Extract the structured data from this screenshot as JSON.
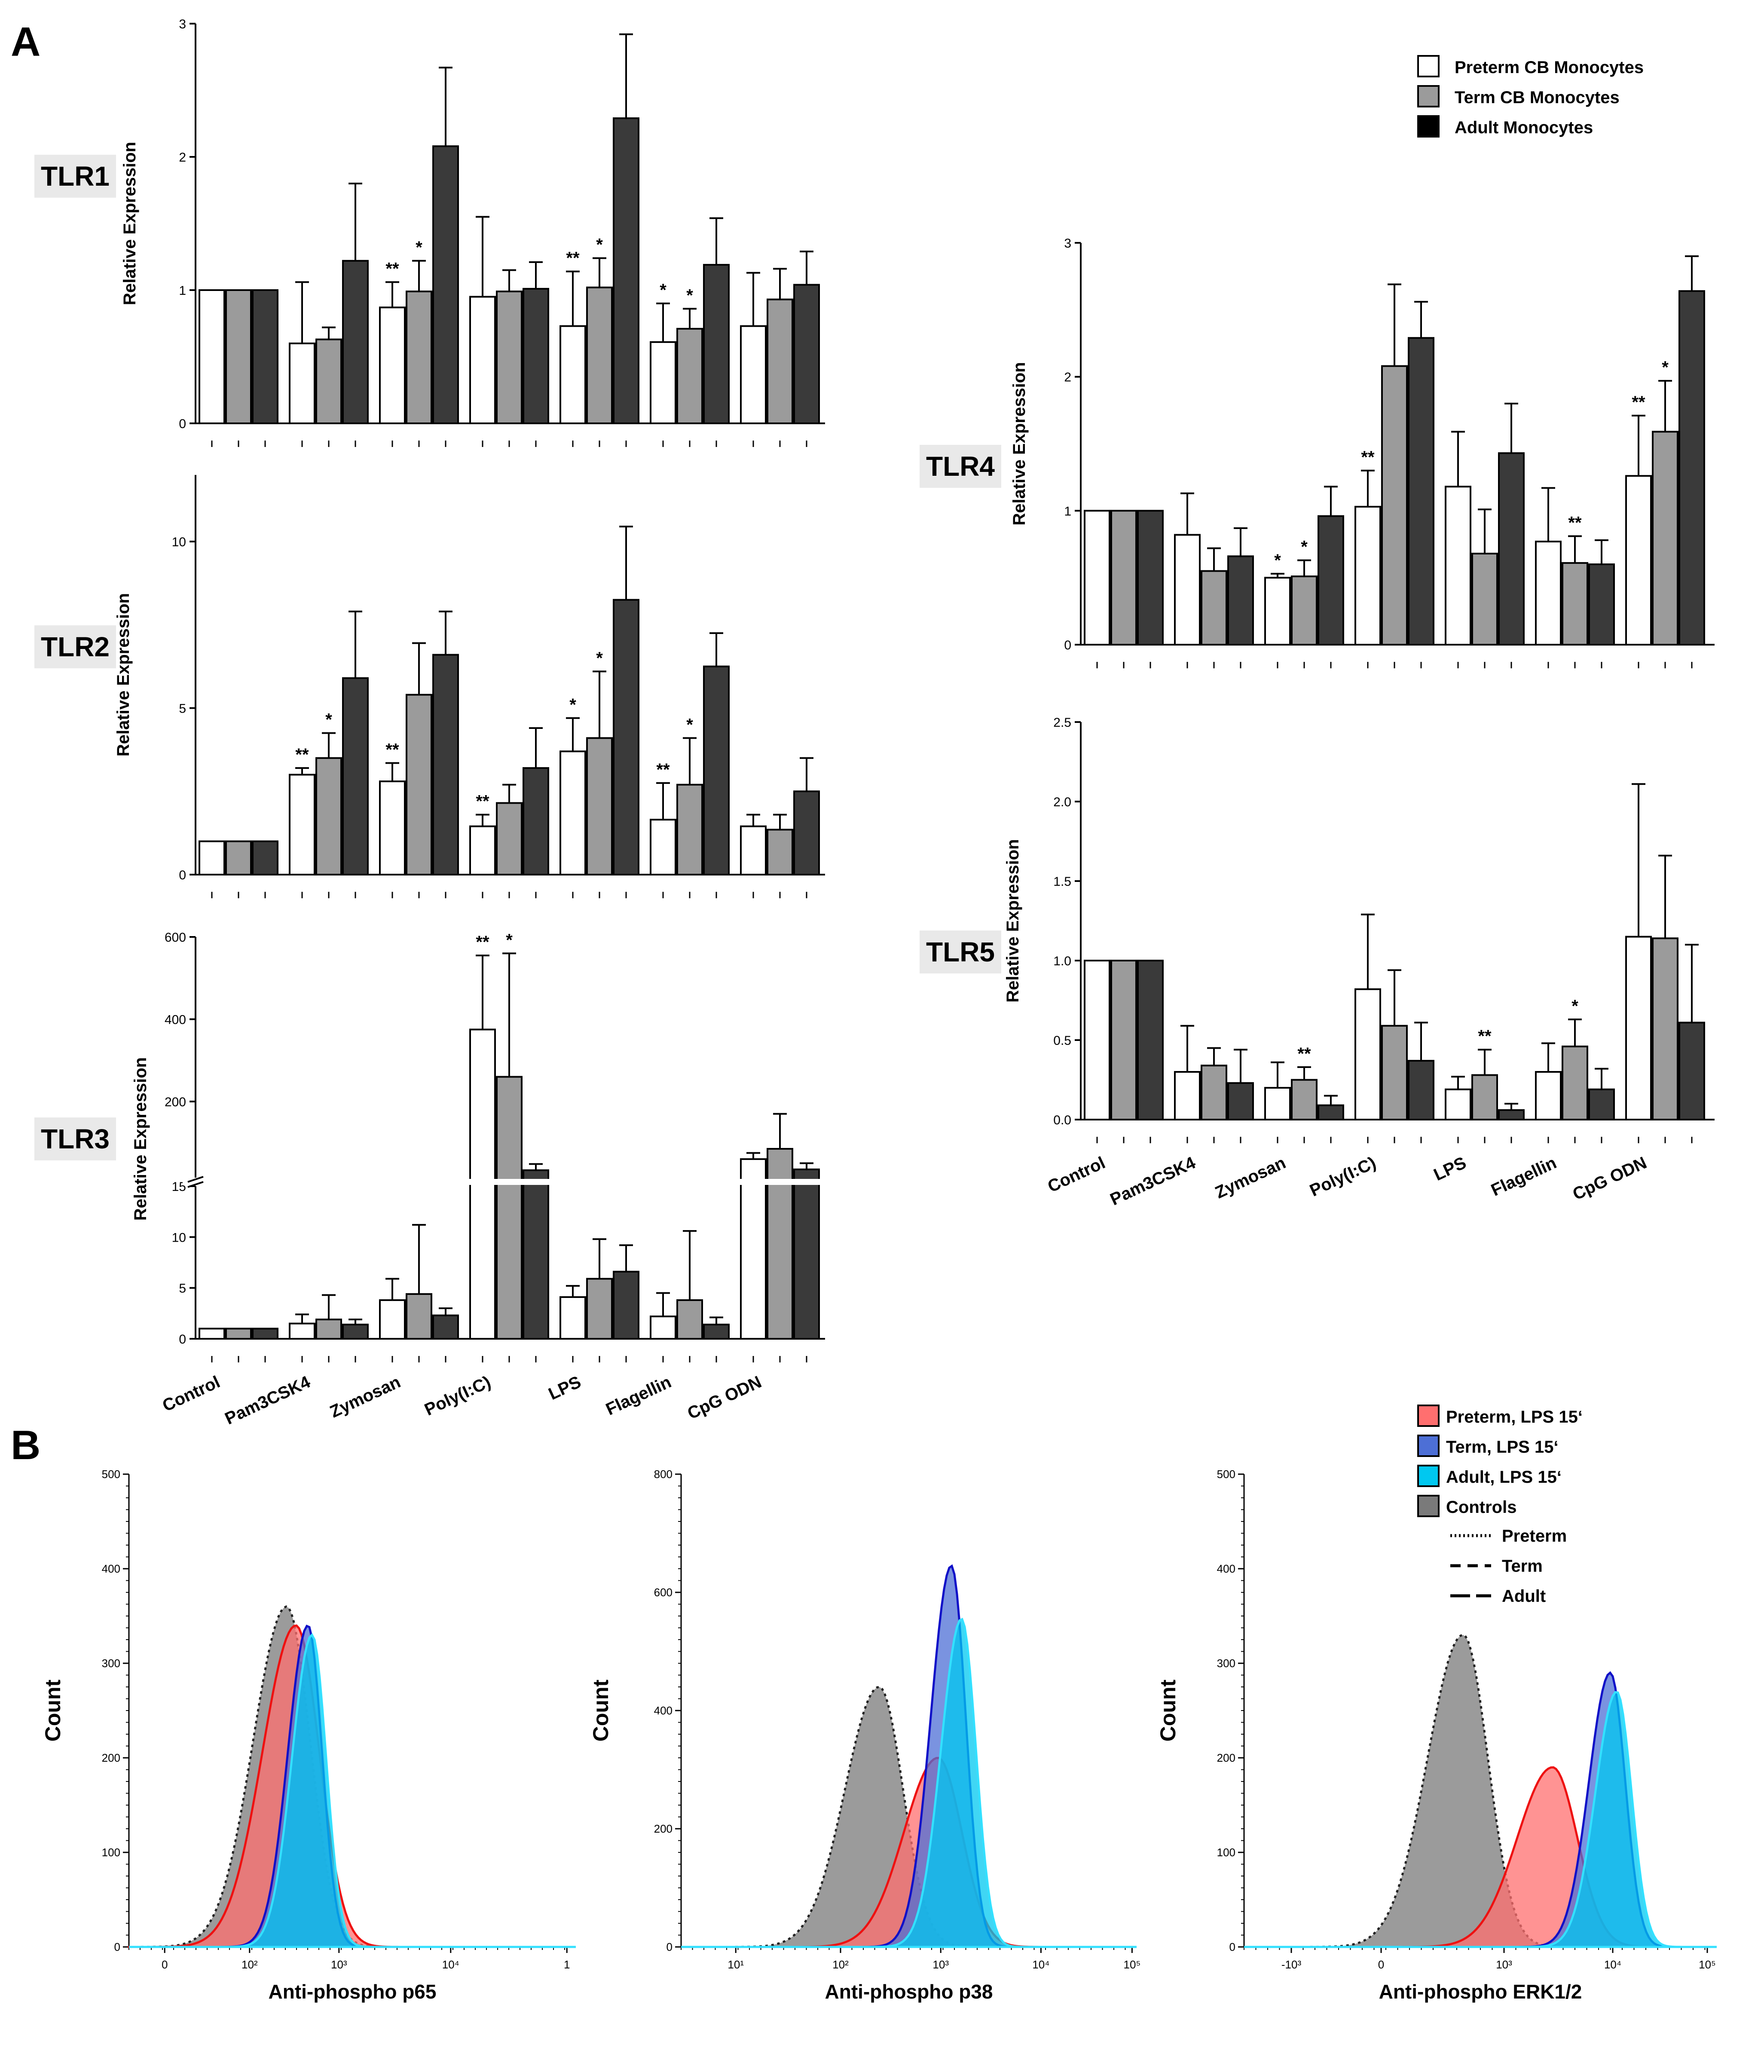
{
  "panel_labels": [
    "A",
    "B"
  ],
  "legend_A": [
    {
      "label": "Preterm CB Monocytes",
      "color": "#ffffff"
    },
    {
      "label": "Term CB Monocytes",
      "color": "#9b9b9b"
    },
    {
      "label": "Adult Monocytes",
      "color": "#000000"
    }
  ],
  "legend_B": {
    "fills": [
      {
        "label": "Preterm, LPS 15‘",
        "color": "#ff6f6f"
      },
      {
        "label": "Term, LPS 15‘",
        "color": "#4d6fd6"
      },
      {
        "label": "Adult, LPS 15‘",
        "color": "#00c8f0"
      },
      {
        "label": "Controls",
        "color": "#7a7a7a"
      }
    ],
    "lines": [
      {
        "label": "Preterm",
        "dash": "dotted"
      },
      {
        "label": "Term",
        "dash": "dashed"
      },
      {
        "label": "Adult",
        "dash": "long-dashed"
      }
    ]
  },
  "chart_data": [
    {
      "type": "bar",
      "name": "TLR1",
      "ylabel": "Relative Expression",
      "categories": [
        "Control",
        "Pam3CSK4",
        "Zymosan",
        "Poly(I:C)",
        "LPS",
        "Flagellin",
        "CpG ODN"
      ],
      "ylim": [
        0,
        3
      ],
      "yticks": [
        0,
        1,
        2,
        3
      ],
      "series": [
        {
          "name": "Preterm CB Monocytes",
          "values": [
            1,
            0.6,
            0.87,
            0.95,
            0.73,
            0.61,
            0.73
          ],
          "err": [
            0,
            0.46,
            0.19,
            0.6,
            0.41,
            0.29,
            0.4
          ]
        },
        {
          "name": "Term CB Monocytes",
          "values": [
            1,
            0.63,
            0.99,
            0.99,
            1.02,
            0.71,
            0.93
          ],
          "err": [
            0,
            0.09,
            0.23,
            0.16,
            0.22,
            0.15,
            0.23
          ]
        },
        {
          "name": "Adult Monocytes",
          "values": [
            1,
            1.22,
            2.08,
            1.01,
            2.29,
            1.19,
            1.04
          ],
          "err": [
            0,
            0.58,
            0.59,
            0.2,
            0.63,
            0.35,
            0.25
          ]
        }
      ],
      "stars": [
        null,
        null,
        [
          "**",
          "*",
          ""
        ],
        null,
        [
          "**",
          "*",
          ""
        ],
        [
          "*",
          "*",
          ""
        ],
        null
      ]
    },
    {
      "type": "bar",
      "name": "TLR2",
      "ylabel": "Relative Expression",
      "categories": [
        "Control",
        "Pam3CSK4",
        "Zymosan",
        "Poly(I:C)",
        "LPS",
        "Flagellin",
        "CpG ODN"
      ],
      "ylim": [
        0,
        12
      ],
      "yticks": [
        0,
        5,
        10
      ],
      "series": [
        {
          "name": "Preterm CB Monocytes",
          "values": [
            1,
            3.0,
            2.8,
            1.45,
            3.7,
            1.65,
            1.45
          ],
          "err": [
            0,
            0.2,
            0.55,
            0.35,
            1.0,
            1.1,
            0.35
          ]
        },
        {
          "name": "Term CB Monocytes",
          "values": [
            1,
            3.5,
            5.4,
            2.15,
            4.1,
            2.7,
            1.35
          ],
          "err": [
            0,
            0.75,
            1.55,
            0.55,
            2.0,
            1.4,
            0.45
          ]
        },
        {
          "name": "Adult Monocytes",
          "values": [
            1,
            5.9,
            6.6,
            3.2,
            8.25,
            6.25,
            2.5
          ],
          "err": [
            0,
            2.0,
            1.3,
            1.2,
            2.2,
            1.0,
            1.0
          ]
        }
      ],
      "stars": [
        null,
        [
          "**",
          "*",
          ""
        ],
        [
          "**",
          "",
          ""
        ],
        [
          "**",
          "",
          ""
        ],
        [
          "*",
          "*",
          ""
        ],
        [
          "**",
          "*",
          ""
        ],
        null
      ]
    },
    {
      "type": "bar",
      "name": "TLR3",
      "ylabel": "Relative Expression",
      "axis_break": true,
      "categories": [
        "Control",
        "Pam3CSK4",
        "Zymosan",
        "Poly(I:C)",
        "LPS",
        "Flagellin",
        "CpG ODN"
      ],
      "ylim_lower": [
        0,
        15
      ],
      "yticks_lower": [
        0,
        5,
        10,
        15
      ],
      "ylim_upper": [
        15,
        600
      ],
      "yticks_upper": [
        200,
        400,
        600
      ],
      "series": [
        {
          "name": "Preterm CB Monocytes",
          "values": [
            1,
            1.5,
            3.8,
            375,
            4.1,
            2.2,
            60
          ],
          "err": [
            0,
            0.9,
            2.1,
            180,
            1.1,
            2.3,
            15
          ]
        },
        {
          "name": "Term CB Monocytes",
          "values": [
            1,
            1.9,
            4.4,
            260,
            5.9,
            3.8,
            85
          ],
          "err": [
            0,
            2.4,
            6.8,
            300,
            3.9,
            6.8,
            85
          ]
        },
        {
          "name": "Adult Monocytes",
          "values": [
            1,
            1.4,
            2.3,
            33,
            6.6,
            1.4,
            35
          ],
          "err": [
            0,
            0.5,
            0.7,
            15,
            2.6,
            0.7,
            15
          ]
        }
      ],
      "stars": [
        null,
        null,
        null,
        [
          "**",
          "*",
          ""
        ],
        null,
        null,
        null
      ]
    },
    {
      "type": "bar",
      "name": "TLR4",
      "ylabel": "Relative Expression",
      "categories": [
        "Control",
        "Pam3CSK4",
        "Zymosan",
        "Poly(I:C)",
        "LPS",
        "Flagellin",
        "CpG ODN"
      ],
      "ylim": [
        0,
        3
      ],
      "yticks": [
        0,
        1,
        2,
        3
      ],
      "series": [
        {
          "name": "Preterm CB Monocytes",
          "values": [
            1,
            0.82,
            0.5,
            1.03,
            1.18,
            0.77,
            1.26
          ],
          "err": [
            0,
            0.31,
            0.03,
            0.27,
            0.41,
            0.4,
            0.45
          ]
        },
        {
          "name": "Term CB Monocytes",
          "values": [
            1,
            0.55,
            0.51,
            2.08,
            0.68,
            0.61,
            1.59
          ],
          "err": [
            0,
            0.17,
            0.12,
            0.61,
            0.33,
            0.2,
            0.38
          ]
        },
        {
          "name": "Adult Monocytes",
          "values": [
            1,
            0.66,
            0.96,
            2.29,
            1.43,
            0.6,
            2.64
          ],
          "err": [
            0,
            0.21,
            0.22,
            0.27,
            0.37,
            0.18,
            0.26
          ]
        }
      ],
      "stars": [
        null,
        null,
        [
          "*",
          "*",
          ""
        ],
        [
          "**",
          "",
          ""
        ],
        null,
        [
          "",
          "**",
          ""
        ],
        [
          "**",
          "*",
          ""
        ]
      ]
    },
    {
      "type": "bar",
      "name": "TLR5",
      "ylabel": "Relative Expression",
      "categories": [
        "Control",
        "Pam3CSK4",
        "Zymosan",
        "Poly(I:C)",
        "LPS",
        "Flagellin",
        "CpG ODN"
      ],
      "ylim": [
        0,
        2.5
      ],
      "yticks": [
        "0.0",
        "0.5",
        "1.0",
        "1.5",
        "2.0",
        "2.5"
      ],
      "series": [
        {
          "name": "Preterm CB Monocytes",
          "values": [
            1,
            0.3,
            0.2,
            0.82,
            0.19,
            0.3,
            1.15
          ],
          "err": [
            0,
            0.29,
            0.16,
            0.47,
            0.08,
            0.18,
            0.96
          ]
        },
        {
          "name": "Term CB Monocytes",
          "values": [
            1,
            0.34,
            0.25,
            0.59,
            0.28,
            0.46,
            1.14
          ],
          "err": [
            0,
            0.11,
            0.08,
            0.35,
            0.16,
            0.17,
            0.52
          ]
        },
        {
          "name": "Adult Monocytes",
          "values": [
            1,
            0.23,
            0.09,
            0.37,
            0.06,
            0.19,
            0.61
          ],
          "err": [
            0,
            0.21,
            0.06,
            0.24,
            0.04,
            0.13,
            0.49
          ]
        }
      ],
      "stars": [
        null,
        null,
        [
          "",
          "**",
          ""
        ],
        null,
        [
          "",
          "**",
          ""
        ],
        [
          "",
          "*",
          ""
        ],
        null
      ]
    },
    {
      "type": "area",
      "name": "Anti-phospho p65",
      "xlabel": "Anti-phospho p65",
      "ylabel": "Count",
      "xscale": "biexponential",
      "xticks": [
        "0",
        "10²",
        "10³",
        "10⁴",
        "1"
      ],
      "ylim": [
        0,
        500
      ],
      "yticks": [
        0,
        100,
        200,
        300,
        400,
        500
      ],
      "series": [
        {
          "name": "Controls",
          "peak_x": 260,
          "peak_y": 360
        },
        {
          "name": "Preterm, LPS 15‘",
          "peak_x": 330,
          "peak_y": 340
        },
        {
          "name": "Term, LPS 15‘",
          "peak_x": 450,
          "peak_y": 340
        },
        {
          "name": "Adult, LPS 15‘",
          "peak_x": 500,
          "peak_y": 330
        }
      ]
    },
    {
      "type": "area",
      "name": "Anti-phospho p38",
      "xlabel": "Anti-phospho p38",
      "ylabel": "Count",
      "xscale": "log",
      "xticks": [
        "10¹",
        "10²",
        "10³",
        "10⁴",
        "10⁵"
      ],
      "ylim": [
        0,
        800
      ],
      "yticks": [
        0,
        200,
        400,
        600,
        800
      ],
      "series": [
        {
          "name": "Controls",
          "peak_x": 280,
          "peak_y": 440
        },
        {
          "name": "Preterm, LPS 15‘",
          "peak_x": 1100,
          "peak_y": 320
        },
        {
          "name": "Term, LPS 15‘",
          "peak_x": 1500,
          "peak_y": 645
        },
        {
          "name": "Adult, LPS 15‘",
          "peak_x": 1900,
          "peak_y": 555
        }
      ]
    },
    {
      "type": "area",
      "name": "Anti-phospho ERK1/2",
      "xlabel": "Anti-phospho ERK1/2",
      "ylabel": "Count",
      "xscale": "biexponential",
      "xticks": [
        "-10³",
        "0",
        "10³",
        "10⁴",
        "10⁵"
      ],
      "ylim": [
        0,
        500
      ],
      "yticks": [
        0,
        100,
        200,
        300,
        400,
        500
      ],
      "series": [
        {
          "name": "Controls",
          "peak_x": 100,
          "peak_y": 330
        },
        {
          "name": "Preterm, LPS 15‘",
          "peak_x": 2800,
          "peak_y": 190
        },
        {
          "name": "Term, LPS 15‘",
          "peak_x": 9500,
          "peak_y": 290
        },
        {
          "name": "Adult, LPS 15‘",
          "peak_x": 11000,
          "peak_y": 270
        }
      ]
    }
  ]
}
